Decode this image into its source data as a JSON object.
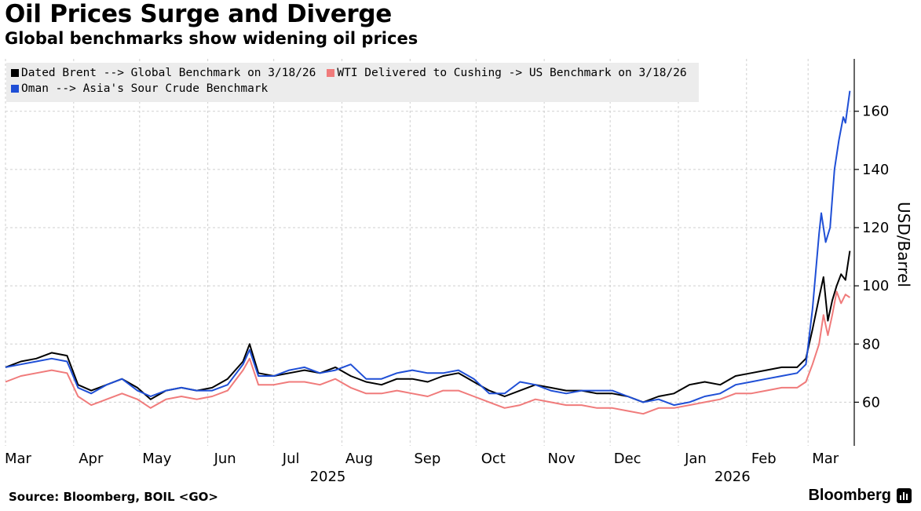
{
  "header": {
    "title": "Oil Prices Surge and Diverge",
    "subtitle": "Global benchmarks show widening oil prices"
  },
  "footer": {
    "source": "Source: Bloomberg, BOIL <GO>",
    "brand": "Bloomberg"
  },
  "colors": {
    "brent": "#000000",
    "wti": "#f07b7b",
    "oman": "#1f4fd6",
    "grid": "#cfcfcf",
    "legend_bg": "#ececec"
  },
  "chart_data": {
    "type": "line",
    "title": "Oil Prices Surge and Diverge",
    "subtitle": "Global benchmarks show widening oil prices",
    "ylabel": "USD/Barrel",
    "ylim": [
      45,
      178
    ],
    "yticks": [
      60,
      80,
      100,
      120,
      140,
      160
    ],
    "y_axis_side": "right",
    "grid": true,
    "legend_position": "top-left",
    "x_range": [
      "2025-03-01",
      "2026-03-22"
    ],
    "x_tick_labels": [
      {
        "label": "Mar",
        "date": "2025-03-01"
      },
      {
        "label": "Apr",
        "date": "2025-04-01"
      },
      {
        "label": "May",
        "date": "2025-05-01"
      },
      {
        "label": "Jun",
        "date": "2025-06-01"
      },
      {
        "label": "Jul",
        "date": "2025-07-01"
      },
      {
        "label": "Aug",
        "date": "2025-08-01"
      },
      {
        "label": "Sep",
        "date": "2025-09-01"
      },
      {
        "label": "Oct",
        "date": "2025-10-01"
      },
      {
        "label": "Nov",
        "date": "2025-11-01"
      },
      {
        "label": "Dec",
        "date": "2025-12-01"
      },
      {
        "label": "Jan",
        "date": "2026-01-01"
      },
      {
        "label": "Feb",
        "date": "2026-02-01"
      },
      {
        "label": "Mar",
        "date": "2026-03-01"
      }
    ],
    "year_labels": [
      {
        "label": "2025",
        "date": "2025-08-01"
      },
      {
        "label": "2026",
        "date": "2026-02-01"
      }
    ],
    "series": [
      {
        "name": "Dated Brent --> Global Benchmark on 3/18/26",
        "color": "#000000",
        "points": [
          [
            "2025-03-01",
            72
          ],
          [
            "2025-03-08",
            74
          ],
          [
            "2025-03-15",
            75
          ],
          [
            "2025-03-22",
            77
          ],
          [
            "2025-03-29",
            76
          ],
          [
            "2025-04-03",
            66
          ],
          [
            "2025-04-09",
            64
          ],
          [
            "2025-04-16",
            66
          ],
          [
            "2025-04-23",
            68
          ],
          [
            "2025-04-30",
            65
          ],
          [
            "2025-05-06",
            61
          ],
          [
            "2025-05-13",
            64
          ],
          [
            "2025-05-20",
            65
          ],
          [
            "2025-05-27",
            64
          ],
          [
            "2025-06-03",
            65
          ],
          [
            "2025-06-10",
            68
          ],
          [
            "2025-06-17",
            74
          ],
          [
            "2025-06-20",
            80
          ],
          [
            "2025-06-24",
            70
          ],
          [
            "2025-07-01",
            69
          ],
          [
            "2025-07-08",
            70
          ],
          [
            "2025-07-15",
            71
          ],
          [
            "2025-07-22",
            70
          ],
          [
            "2025-07-29",
            72
          ],
          [
            "2025-08-05",
            69
          ],
          [
            "2025-08-12",
            67
          ],
          [
            "2025-08-19",
            66
          ],
          [
            "2025-08-26",
            68
          ],
          [
            "2025-09-02",
            68
          ],
          [
            "2025-09-09",
            67
          ],
          [
            "2025-09-16",
            69
          ],
          [
            "2025-09-23",
            70
          ],
          [
            "2025-09-30",
            67
          ],
          [
            "2025-10-07",
            64
          ],
          [
            "2025-10-14",
            62
          ],
          [
            "2025-10-21",
            64
          ],
          [
            "2025-10-28",
            66
          ],
          [
            "2025-11-04",
            65
          ],
          [
            "2025-11-11",
            64
          ],
          [
            "2025-11-18",
            64
          ],
          [
            "2025-11-25",
            63
          ],
          [
            "2025-12-02",
            63
          ],
          [
            "2025-12-09",
            62
          ],
          [
            "2025-12-16",
            60
          ],
          [
            "2025-12-23",
            62
          ],
          [
            "2025-12-30",
            63
          ],
          [
            "2026-01-06",
            66
          ],
          [
            "2026-01-13",
            67
          ],
          [
            "2026-01-20",
            66
          ],
          [
            "2026-01-27",
            69
          ],
          [
            "2026-02-03",
            70
          ],
          [
            "2026-02-10",
            71
          ],
          [
            "2026-02-17",
            72
          ],
          [
            "2026-02-24",
            72
          ],
          [
            "2026-02-28",
            75
          ],
          [
            "2026-03-03",
            85
          ],
          [
            "2026-03-06",
            96
          ],
          [
            "2026-03-08",
            103
          ],
          [
            "2026-03-10",
            88
          ],
          [
            "2026-03-12",
            95
          ],
          [
            "2026-03-14",
            100
          ],
          [
            "2026-03-16",
            104
          ],
          [
            "2026-03-18",
            102
          ],
          [
            "2026-03-20",
            112
          ]
        ]
      },
      {
        "name": "WTI Delivered to Cushing -> US Benchmark on 3/18/26",
        "color": "#f07b7b",
        "points": [
          [
            "2025-03-01",
            67
          ],
          [
            "2025-03-08",
            69
          ],
          [
            "2025-03-15",
            70
          ],
          [
            "2025-03-22",
            71
          ],
          [
            "2025-03-29",
            70
          ],
          [
            "2025-04-03",
            62
          ],
          [
            "2025-04-09",
            59
          ],
          [
            "2025-04-16",
            61
          ],
          [
            "2025-04-23",
            63
          ],
          [
            "2025-04-30",
            61
          ],
          [
            "2025-05-06",
            58
          ],
          [
            "2025-05-13",
            61
          ],
          [
            "2025-05-20",
            62
          ],
          [
            "2025-05-27",
            61
          ],
          [
            "2025-06-03",
            62
          ],
          [
            "2025-06-10",
            64
          ],
          [
            "2025-06-17",
            71
          ],
          [
            "2025-06-20",
            75
          ],
          [
            "2025-06-24",
            66
          ],
          [
            "2025-07-01",
            66
          ],
          [
            "2025-07-08",
            67
          ],
          [
            "2025-07-15",
            67
          ],
          [
            "2025-07-22",
            66
          ],
          [
            "2025-07-29",
            68
          ],
          [
            "2025-08-05",
            65
          ],
          [
            "2025-08-12",
            63
          ],
          [
            "2025-08-19",
            63
          ],
          [
            "2025-08-26",
            64
          ],
          [
            "2025-09-02",
            63
          ],
          [
            "2025-09-09",
            62
          ],
          [
            "2025-09-16",
            64
          ],
          [
            "2025-09-23",
            64
          ],
          [
            "2025-09-30",
            62
          ],
          [
            "2025-10-07",
            60
          ],
          [
            "2025-10-14",
            58
          ],
          [
            "2025-10-21",
            59
          ],
          [
            "2025-10-28",
            61
          ],
          [
            "2025-11-04",
            60
          ],
          [
            "2025-11-11",
            59
          ],
          [
            "2025-11-18",
            59
          ],
          [
            "2025-11-25",
            58
          ],
          [
            "2025-12-02",
            58
          ],
          [
            "2025-12-09",
            57
          ],
          [
            "2025-12-16",
            56
          ],
          [
            "2025-12-23",
            58
          ],
          [
            "2025-12-30",
            58
          ],
          [
            "2026-01-06",
            59
          ],
          [
            "2026-01-13",
            60
          ],
          [
            "2026-01-20",
            61
          ],
          [
            "2026-01-27",
            63
          ],
          [
            "2026-02-03",
            63
          ],
          [
            "2026-02-10",
            64
          ],
          [
            "2026-02-17",
            65
          ],
          [
            "2026-02-24",
            65
          ],
          [
            "2026-02-28",
            67
          ],
          [
            "2026-03-03",
            73
          ],
          [
            "2026-03-06",
            80
          ],
          [
            "2026-03-08",
            90
          ],
          [
            "2026-03-10",
            83
          ],
          [
            "2026-03-12",
            90
          ],
          [
            "2026-03-14",
            98
          ],
          [
            "2026-03-16",
            94
          ],
          [
            "2026-03-18",
            97
          ],
          [
            "2026-03-20",
            96
          ]
        ]
      },
      {
        "name": "Oman --> Asia's Sour Crude Benchmark",
        "color": "#1f4fd6",
        "points": [
          [
            "2025-03-01",
            72
          ],
          [
            "2025-03-08",
            73
          ],
          [
            "2025-03-15",
            74
          ],
          [
            "2025-03-22",
            75
          ],
          [
            "2025-03-29",
            74
          ],
          [
            "2025-04-03",
            65
          ],
          [
            "2025-04-09",
            63
          ],
          [
            "2025-04-16",
            66
          ],
          [
            "2025-04-23",
            68
          ],
          [
            "2025-04-30",
            64
          ],
          [
            "2025-05-06",
            62
          ],
          [
            "2025-05-13",
            64
          ],
          [
            "2025-05-20",
            65
          ],
          [
            "2025-05-27",
            64
          ],
          [
            "2025-06-03",
            64
          ],
          [
            "2025-06-10",
            66
          ],
          [
            "2025-06-17",
            73
          ],
          [
            "2025-06-20",
            78
          ],
          [
            "2025-06-24",
            69
          ],
          [
            "2025-07-01",
            69
          ],
          [
            "2025-07-08",
            71
          ],
          [
            "2025-07-15",
            72
          ],
          [
            "2025-07-22",
            70
          ],
          [
            "2025-07-29",
            71
          ],
          [
            "2025-08-05",
            73
          ],
          [
            "2025-08-12",
            68
          ],
          [
            "2025-08-19",
            68
          ],
          [
            "2025-08-26",
            70
          ],
          [
            "2025-09-02",
            71
          ],
          [
            "2025-09-09",
            70
          ],
          [
            "2025-09-16",
            70
          ],
          [
            "2025-09-23",
            71
          ],
          [
            "2025-09-30",
            68
          ],
          [
            "2025-10-07",
            63
          ],
          [
            "2025-10-14",
            63
          ],
          [
            "2025-10-21",
            67
          ],
          [
            "2025-10-28",
            66
          ],
          [
            "2025-11-04",
            64
          ],
          [
            "2025-11-11",
            63
          ],
          [
            "2025-11-18",
            64
          ],
          [
            "2025-11-25",
            64
          ],
          [
            "2025-12-02",
            64
          ],
          [
            "2025-12-09",
            62
          ],
          [
            "2025-12-16",
            60
          ],
          [
            "2025-12-23",
            61
          ],
          [
            "2025-12-30",
            59
          ],
          [
            "2026-01-06",
            60
          ],
          [
            "2026-01-13",
            62
          ],
          [
            "2026-01-20",
            63
          ],
          [
            "2026-01-27",
            66
          ],
          [
            "2026-02-03",
            67
          ],
          [
            "2026-02-10",
            68
          ],
          [
            "2026-02-17",
            69
          ],
          [
            "2026-02-24",
            70
          ],
          [
            "2026-02-28",
            73
          ],
          [
            "2026-03-03",
            92
          ],
          [
            "2026-03-06",
            118
          ],
          [
            "2026-03-07",
            125
          ],
          [
            "2026-03-09",
            115
          ],
          [
            "2026-03-11",
            120
          ],
          [
            "2026-03-13",
            140
          ],
          [
            "2026-03-15",
            150
          ],
          [
            "2026-03-17",
            158
          ],
          [
            "2026-03-18",
            156
          ],
          [
            "2026-03-20",
            167
          ]
        ]
      }
    ]
  }
}
